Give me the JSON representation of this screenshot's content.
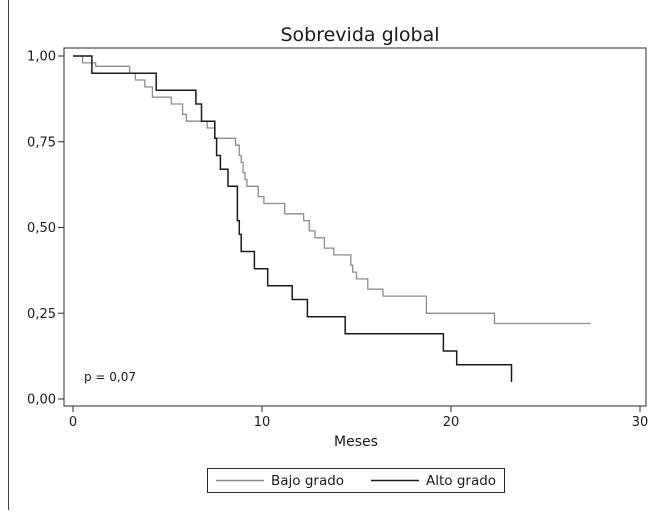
{
  "chart_data": {
    "type": "line",
    "subtype": "kaplan-meier step",
    "title": "Sobrevida global",
    "xlabel": "Meses",
    "ylabel": "",
    "xlim": [
      0,
      30
    ],
    "ylim": [
      0,
      1
    ],
    "x_ticks": [
      0,
      10,
      20,
      30
    ],
    "x_tick_labels": [
      "0",
      "10",
      "20",
      "30"
    ],
    "y_ticks": [
      0,
      0.25,
      0.5,
      0.75,
      1.0
    ],
    "y_tick_labels": [
      "0,00",
      "0,25",
      "0,50",
      "0,75",
      "1,00"
    ],
    "grid": false,
    "legend_position": "bottom",
    "annotation": "p = 0,07",
    "series": [
      {
        "name": "Bajo grado",
        "color": "#8c8c8c",
        "points": [
          [
            0,
            1.0
          ],
          [
            0.5,
            0.98
          ],
          [
            1.2,
            0.97
          ],
          [
            3.0,
            0.95
          ],
          [
            3.3,
            0.93
          ],
          [
            3.8,
            0.91
          ],
          [
            4.2,
            0.88
          ],
          [
            5.2,
            0.86
          ],
          [
            5.8,
            0.83
          ],
          [
            6.0,
            0.81
          ],
          [
            7.1,
            0.79
          ],
          [
            7.5,
            0.76
          ],
          [
            8.6,
            0.74
          ],
          [
            8.8,
            0.71
          ],
          [
            8.9,
            0.69
          ],
          [
            9.0,
            0.66
          ],
          [
            9.1,
            0.64
          ],
          [
            9.2,
            0.62
          ],
          [
            9.8,
            0.59
          ],
          [
            10.1,
            0.57
          ],
          [
            11.2,
            0.54
          ],
          [
            12.2,
            0.52
          ],
          [
            12.5,
            0.49
          ],
          [
            12.8,
            0.47
          ],
          [
            13.3,
            0.44
          ],
          [
            13.8,
            0.42
          ],
          [
            14.7,
            0.39
          ],
          [
            14.8,
            0.37
          ],
          [
            15.0,
            0.35
          ],
          [
            15.6,
            0.32
          ],
          [
            16.4,
            0.3
          ],
          [
            18.7,
            0.25
          ],
          [
            22.3,
            0.22
          ],
          [
            27.4,
            0.22
          ]
        ]
      },
      {
        "name": "Alto grado",
        "color": "#1a1a1a",
        "points": [
          [
            0,
            1.0
          ],
          [
            1.0,
            0.95
          ],
          [
            4.4,
            0.9
          ],
          [
            6.5,
            0.86
          ],
          [
            6.8,
            0.81
          ],
          [
            7.5,
            0.76
          ],
          [
            7.6,
            0.71
          ],
          [
            7.8,
            0.67
          ],
          [
            8.2,
            0.62
          ],
          [
            8.7,
            0.52
          ],
          [
            8.8,
            0.48
          ],
          [
            8.9,
            0.43
          ],
          [
            9.6,
            0.38
          ],
          [
            10.3,
            0.33
          ],
          [
            11.6,
            0.29
          ],
          [
            12.4,
            0.24
          ],
          [
            14.4,
            0.19
          ],
          [
            19.6,
            0.14
          ],
          [
            20.3,
            0.1
          ],
          [
            23.2,
            0.05
          ]
        ]
      }
    ]
  }
}
